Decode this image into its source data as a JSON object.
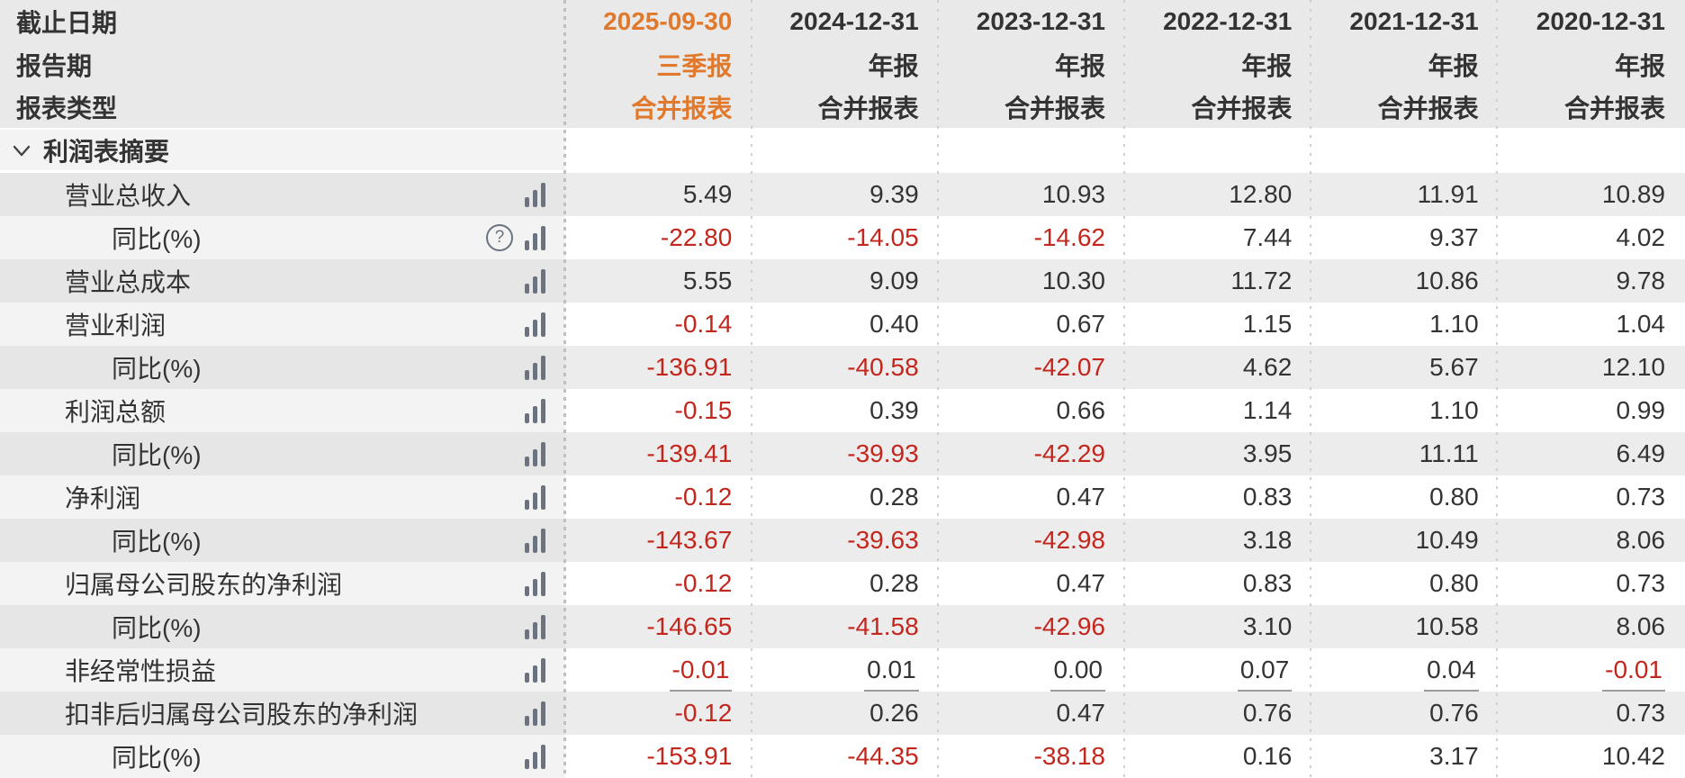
{
  "colors": {
    "accent_orange": "#e0792c",
    "negative_red": "#c3261c",
    "text": "#333333",
    "icon_gray": "#6b7280"
  },
  "header": {
    "rows": [
      {
        "label": "截止日期",
        "values": [
          "2025-09-30",
          "2024-12-31",
          "2023-12-31",
          "2022-12-31",
          "2021-12-31",
          "2020-12-31"
        ]
      },
      {
        "label": "报告期",
        "values": [
          "三季报",
          "年报",
          "年报",
          "年报",
          "年报",
          "年报"
        ]
      },
      {
        "label": "报表类型",
        "values": [
          "合并报表",
          "合并报表",
          "合并报表",
          "合并报表",
          "合并报表",
          "合并报表"
        ]
      }
    ]
  },
  "section": {
    "title": "利润表摘要",
    "chevron_icon": "chevron-down"
  },
  "table": {
    "rows": [
      {
        "label": "营业总收入",
        "level": 1,
        "icons": [
          "bars"
        ],
        "values": [
          "5.49",
          "9.39",
          "10.93",
          "12.80",
          "11.91",
          "10.89"
        ]
      },
      {
        "label": "同比(%)",
        "level": 2,
        "icons": [
          "help",
          "bars"
        ],
        "values": [
          "-22.80",
          "-14.05",
          "-14.62",
          "7.44",
          "9.37",
          "4.02"
        ]
      },
      {
        "label": "营业总成本",
        "level": 1,
        "icons": [
          "bars"
        ],
        "values": [
          "5.55",
          "9.09",
          "10.30",
          "11.72",
          "10.86",
          "9.78"
        ]
      },
      {
        "label": "营业利润",
        "level": 1,
        "icons": [
          "bars"
        ],
        "values": [
          "-0.14",
          "0.40",
          "0.67",
          "1.15",
          "1.10",
          "1.04"
        ]
      },
      {
        "label": "同比(%)",
        "level": 2,
        "icons": [
          "bars"
        ],
        "values": [
          "-136.91",
          "-40.58",
          "-42.07",
          "4.62",
          "5.67",
          "12.10"
        ]
      },
      {
        "label": "利润总额",
        "level": 1,
        "icons": [
          "bars"
        ],
        "values": [
          "-0.15",
          "0.39",
          "0.66",
          "1.14",
          "1.10",
          "0.99"
        ]
      },
      {
        "label": "同比(%)",
        "level": 2,
        "icons": [
          "bars"
        ],
        "values": [
          "-139.41",
          "-39.93",
          "-42.29",
          "3.95",
          "11.11",
          "6.49"
        ]
      },
      {
        "label": "净利润",
        "level": 1,
        "icons": [
          "bars"
        ],
        "values": [
          "-0.12",
          "0.28",
          "0.47",
          "0.83",
          "0.80",
          "0.73"
        ]
      },
      {
        "label": "同比(%)",
        "level": 2,
        "icons": [
          "bars"
        ],
        "values": [
          "-143.67",
          "-39.63",
          "-42.98",
          "3.18",
          "10.49",
          "8.06"
        ]
      },
      {
        "label": "归属母公司股东的净利润",
        "level": 1,
        "icons": [
          "bars"
        ],
        "values": [
          "-0.12",
          "0.28",
          "0.47",
          "0.83",
          "0.80",
          "0.73"
        ]
      },
      {
        "label": "同比(%)",
        "level": 2,
        "icons": [
          "bars"
        ],
        "values": [
          "-146.65",
          "-41.58",
          "-42.96",
          "3.10",
          "10.58",
          "8.06"
        ]
      },
      {
        "label": "非经常性损益",
        "level": 1,
        "icons": [
          "bars"
        ],
        "has_tooltip_underline": true,
        "values": [
          "-0.01",
          "0.01",
          "0.00",
          "0.07",
          "0.04",
          "-0.01"
        ]
      },
      {
        "label": "扣非后归属母公司股东的净利润",
        "level": 1,
        "icons": [
          "bars"
        ],
        "values": [
          "-0.12",
          "0.26",
          "0.47",
          "0.76",
          "0.76",
          "0.73"
        ]
      },
      {
        "label": "同比(%)",
        "level": 2,
        "icons": [
          "bars"
        ],
        "values": [
          "-153.91",
          "-44.35",
          "-38.18",
          "0.16",
          "3.17",
          "10.42"
        ]
      }
    ]
  }
}
